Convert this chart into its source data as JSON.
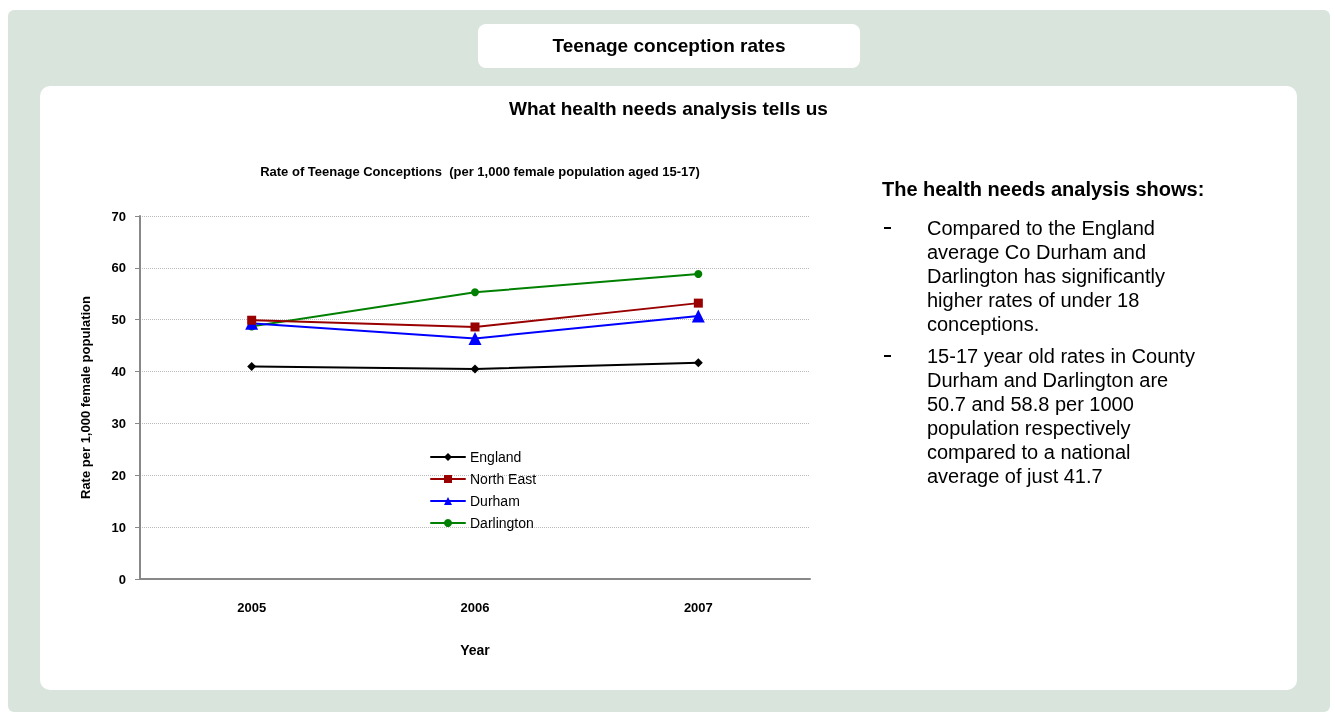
{
  "chart_data": {
    "type": "line",
    "title": "Rate of Teenage Conceptions  (per 1,000 female population aged 15-17)",
    "xlabel": "Year",
    "ylabel": "Rate per 1,000 female population",
    "categories": [
      "2005",
      "2006",
      "2007"
    ],
    "series": [
      {
        "name": "England",
        "color": "#000000",
        "marker": "diamond",
        "values": [
          41.0,
          40.5,
          41.7
        ]
      },
      {
        "name": "North East",
        "color": "#990000",
        "marker": "square",
        "values": [
          49.9,
          48.6,
          53.2
        ]
      },
      {
        "name": "Durham",
        "color": "#0000ff",
        "marker": "triangle",
        "values": [
          49.3,
          46.4,
          50.7
        ]
      },
      {
        "name": "Darlington",
        "color": "#008000",
        "marker": "circle",
        "values": [
          48.7,
          55.3,
          58.8
        ]
      }
    ],
    "ylim": [
      0,
      70
    ],
    "yticks": [
      0,
      10,
      20,
      30,
      40,
      50,
      60,
      70
    ],
    "grid": "y",
    "legend": "bottom",
    "line_style": "solid",
    "annotations": [
      "Teenage conception rates",
      "What health needs analysis tells us",
      "The health needs analysis shows:",
      "Compared to the England average Co Durham and Darlington has significantly higher rates of under 18 conceptions.",
      "15-17 year old rates in County Durham and Darlington are 50.7 and 58.8 per 1000 population respectively compared to a national average of just 41.7"
    ]
  }
}
